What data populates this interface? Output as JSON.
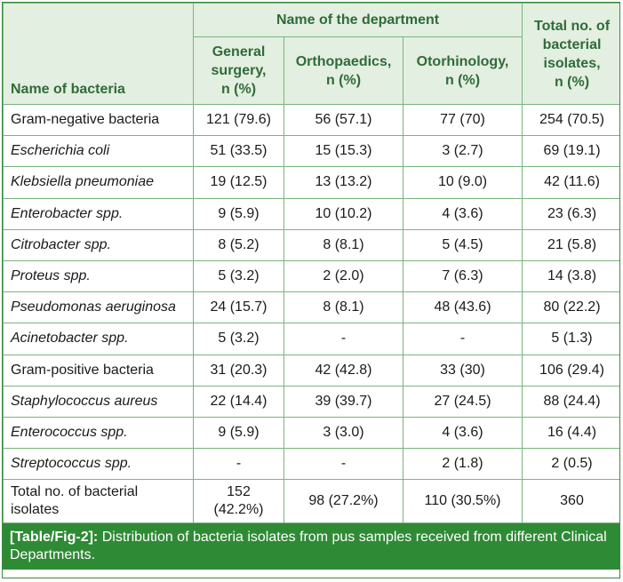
{
  "table": {
    "header": {
      "name_col": "Name of bacteria",
      "dept_group": "Name of the department",
      "departments": [
        "General surgery, n (%)",
        "Orthopaedics, n (%)",
        "Otorhinology, n (%)"
      ],
      "dept_lines": [
        [
          "General",
          "surgery,",
          "n (%)"
        ],
        [
          "Orthopaedics,",
          "n (%)"
        ],
        [
          "Otorhinology,",
          "n (%)"
        ]
      ],
      "total_lines": [
        "Total no. of",
        "bacterial",
        "isolates,",
        "n (%)"
      ]
    },
    "rows": [
      {
        "name": "Gram-negative bacteria",
        "italic": false,
        "values": [
          "121 (79.6)",
          "56 (57.1)",
          "77 (70)",
          "254 (70.5)"
        ]
      },
      {
        "name": "Escherichia coli",
        "italic": true,
        "values": [
          "51 (33.5)",
          "15 (15.3)",
          "3 (2.7)",
          "69 (19.1)"
        ]
      },
      {
        "name": "Klebsiella pneumoniae",
        "italic": true,
        "values": [
          "19 (12.5)",
          "13 (13.2)",
          "10 (9.0)",
          "42 (11.6)"
        ]
      },
      {
        "name": "Enterobacter spp.",
        "italic": true,
        "values": [
          "9 (5.9)",
          "10 (10.2)",
          "4 (3.6)",
          "23 (6.3)"
        ]
      },
      {
        "name": "Citrobacter spp.",
        "italic": true,
        "values": [
          "8 (5.2)",
          "8 (8.1)",
          "5 (4.5)",
          "21 (5.8)"
        ]
      },
      {
        "name": "Proteus spp.",
        "italic": true,
        "values": [
          "5 (3.2)",
          "2 (2.0)",
          "7 (6.3)",
          "14 (3.8)"
        ]
      },
      {
        "name": "Pseudomonas aeruginosa",
        "italic": true,
        "values": [
          "24 (15.7)",
          "8 (8.1)",
          "48 (43.6)",
          "80 (22.2)"
        ]
      },
      {
        "name": "Acinetobacter spp.",
        "italic": true,
        "values": [
          "5 (3.2)",
          "-",
          "-",
          "5 (1.3)"
        ]
      },
      {
        "name": "Gram-positive bacteria",
        "italic": false,
        "values": [
          "31 (20.3)",
          "42 (42.8)",
          "33 (30)",
          "106 (29.4)"
        ]
      },
      {
        "name": "Staphylococcus aureus",
        "italic": true,
        "values": [
          "22 (14.4)",
          "39 (39.7)",
          "27 (24.5)",
          "88 (24.4)"
        ]
      },
      {
        "name": "Enterococcus spp.",
        "italic": true,
        "values": [
          "9 (5.9)",
          "3 (3.0)",
          "4 (3.6)",
          "16 (4.4)"
        ]
      },
      {
        "name": "Streptococcus spp.",
        "italic": true,
        "values": [
          "-",
          "-",
          "2 (1.8)",
          "2 (0.5)"
        ]
      }
    ],
    "total_row": {
      "name": "Total no. of bacterial isolates",
      "name_lines": [
        "Total no. of bacterial",
        "isolates"
      ],
      "values": [
        "152 (42.2%)",
        "98 (27.2%)",
        "110 (30.5%)",
        "360"
      ],
      "first_value_lines": [
        "152",
        "(42.2%)"
      ]
    }
  },
  "caption": {
    "label": "[Table/Fig-2]:",
    "text": "Distribution of bacteria isolates from pus samples received from different Clinical Departments."
  },
  "colors": {
    "header_bg": "#e3efe0",
    "header_text": "#2f6b3a",
    "border": "#7ab47e",
    "caption_bg": "#2f8a35"
  }
}
